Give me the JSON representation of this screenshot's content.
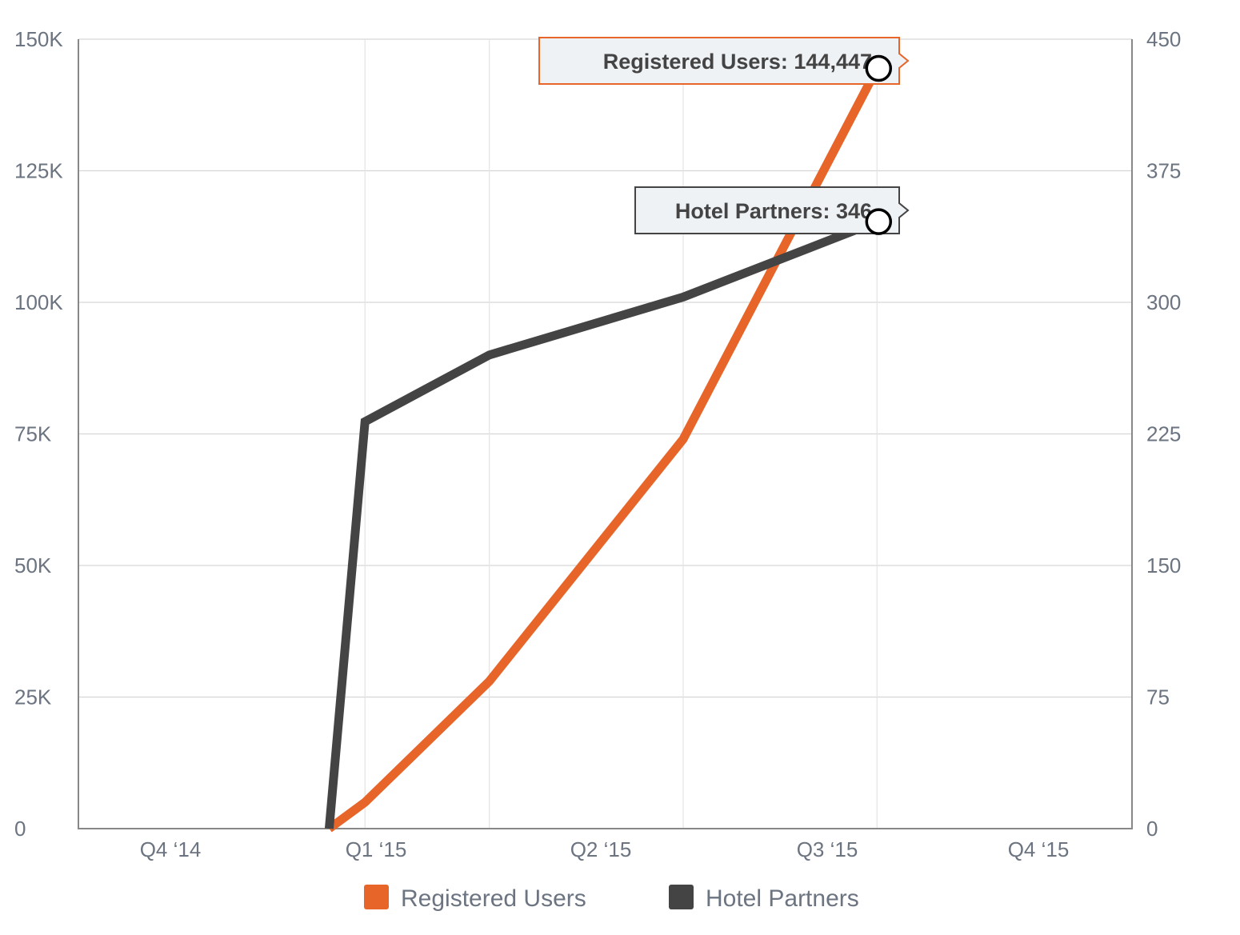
{
  "chart_data": {
    "type": "line",
    "x_categories": [
      "Q4 ‘14",
      "Q1 ‘15",
      "Q2 ‘15",
      "Q3 ‘15",
      "Q4 ‘15"
    ],
    "left_axis": {
      "ticks": [
        "0",
        "25K",
        "50K",
        "75K",
        "100K",
        "125K",
        "150K"
      ],
      "ylim": [
        0,
        150000
      ]
    },
    "right_axis": {
      "ticks": [
        "0",
        "75",
        "150",
        "225",
        "300",
        "375",
        "450"
      ],
      "ylim": [
        0,
        450
      ]
    },
    "grid": true,
    "legend_position": "bottom",
    "series": [
      {
        "name": "Registered Users",
        "axis": "left",
        "color": "#e8652a",
        "x": [
          "2014-12-15",
          "2015-01-01",
          "2015-03-01",
          "2015-06-01",
          "2015-09-01"
        ],
        "values": [
          0,
          5000,
          28000,
          74000,
          144447
        ]
      },
      {
        "name": "Hotel Partners",
        "axis": "right",
        "color": "#444444",
        "x": [
          "2014-12-15",
          "2015-01-01",
          "2015-03-01",
          "2015-06-01",
          "2015-09-01"
        ],
        "values": [
          0,
          232,
          270,
          303,
          346
        ]
      }
    ],
    "annotations": [
      {
        "series": "Registered Users",
        "text": "Registered Users: 144,447"
      },
      {
        "series": "Hotel Partners",
        "text": "Hotel Partners: 346"
      }
    ]
  }
}
